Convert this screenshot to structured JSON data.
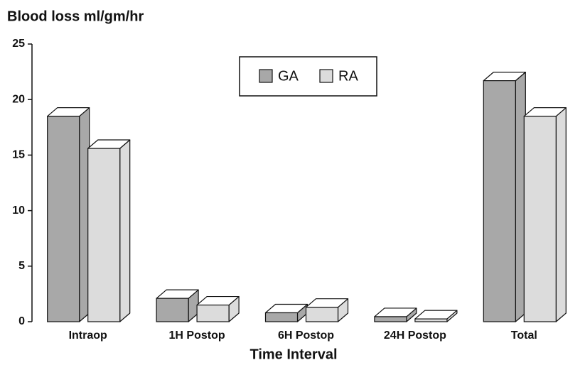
{
  "chart_data": {
    "type": "bar3d",
    "title": "Blood loss ml/gm/hr",
    "x_label": "Time Interval",
    "categories": [
      "Intraop",
      "1H Postop",
      "6H Postop",
      "24H Postop",
      "Total"
    ],
    "series": [
      {
        "name": "GA",
        "color": "#a8a8a8",
        "values": [
          18.5,
          2.1,
          0.8,
          0.45,
          21.7
        ]
      },
      {
        "name": "RA",
        "color": "#dcdcdc",
        "values": [
          15.6,
          1.5,
          1.3,
          0.25,
          18.5
        ]
      }
    ],
    "ylim": [
      0,
      25
    ],
    "yticks": [
      0,
      5,
      10,
      15,
      20,
      25
    ],
    "legend": "top"
  }
}
